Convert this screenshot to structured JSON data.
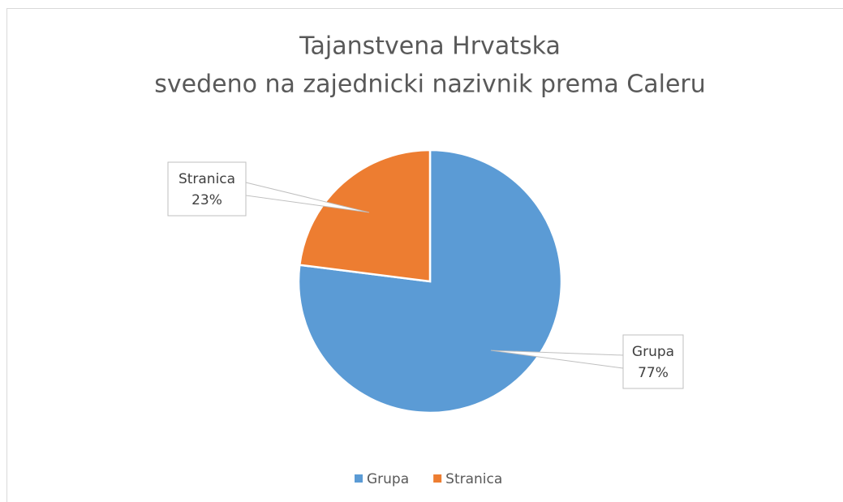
{
  "chart_data": {
    "type": "pie",
    "title": "Tajanstvena Hrvatska",
    "subtitle": "svedeno na zajednicki nazivnik prema Caleru",
    "categories": [
      "Grupa",
      "Stranica"
    ],
    "values": [
      77,
      23
    ],
    "value_labels": [
      "77%",
      "23%"
    ],
    "colors": [
      "#5b9bd5",
      "#ed7d31"
    ],
    "legend": "bottom"
  }
}
